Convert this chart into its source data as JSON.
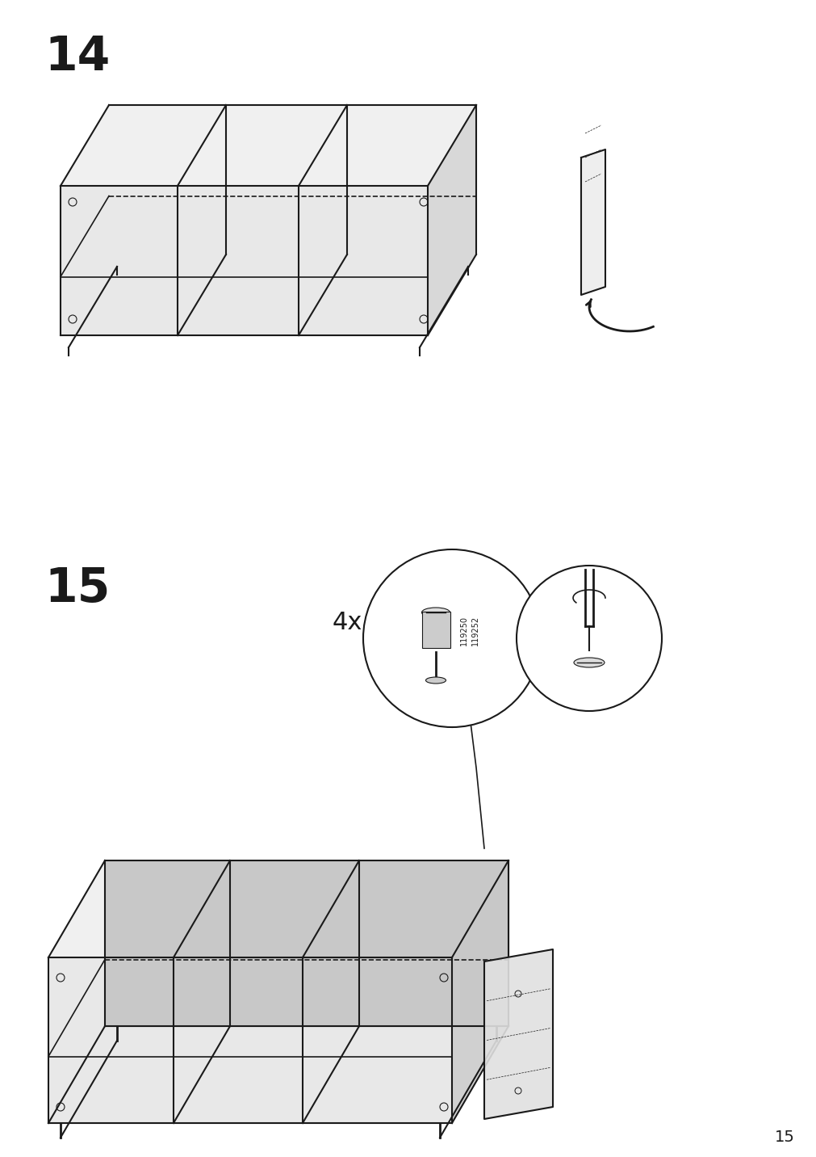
{
  "page_number": "15",
  "step14_number": "14",
  "step15_number": "15",
  "bg_color": "#ffffff",
  "line_color": "#1a1a1a",
  "step14_quantity": "4x",
  "part_numbers": "119250\n119252",
  "page_bg": "#ffffff"
}
